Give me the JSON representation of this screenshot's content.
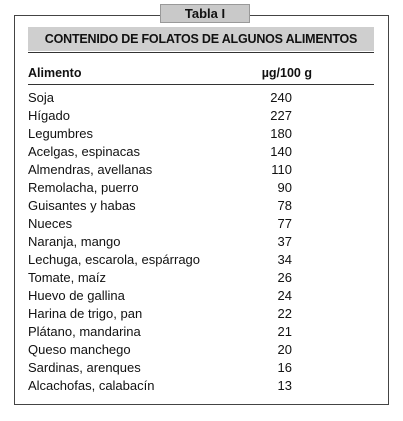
{
  "tab_label": "Tabla I",
  "caption": "CONTENIDO DE FOLATOS DE ALGUNOS ALIMENTOS",
  "columns": [
    "Alimento",
    "µg/100 g"
  ],
  "rows": [
    {
      "name": "Soja",
      "value": "240"
    },
    {
      "name": "Hígado",
      "value": "227"
    },
    {
      "name": "Legumbres",
      "value": "180"
    },
    {
      "name": "Acelgas, espinacas",
      "value": "140"
    },
    {
      "name": "Almendras, avellanas",
      "value": "110"
    },
    {
      "name": "Remolacha, puerro",
      "value": "90"
    },
    {
      "name": "Guisantes y habas",
      "value": "78"
    },
    {
      "name": "Nueces",
      "value": "77"
    },
    {
      "name": "Naranja, mango",
      "value": "37"
    },
    {
      "name": "Lechuga, escarola, espárrago",
      "value": "34"
    },
    {
      "name": "Tomate, maíz",
      "value": "26"
    },
    {
      "name": "Huevo de gallina",
      "value": "24"
    },
    {
      "name": "Harina de trigo, pan",
      "value": "22"
    },
    {
      "name": "Plátano, mandarina",
      "value": "21"
    },
    {
      "name": "Queso manchego",
      "value": "20"
    },
    {
      "name": "Sardinas, arenques",
      "value": "16"
    },
    {
      "name": "Alcachofas, calabacín",
      "value": "13"
    }
  ]
}
